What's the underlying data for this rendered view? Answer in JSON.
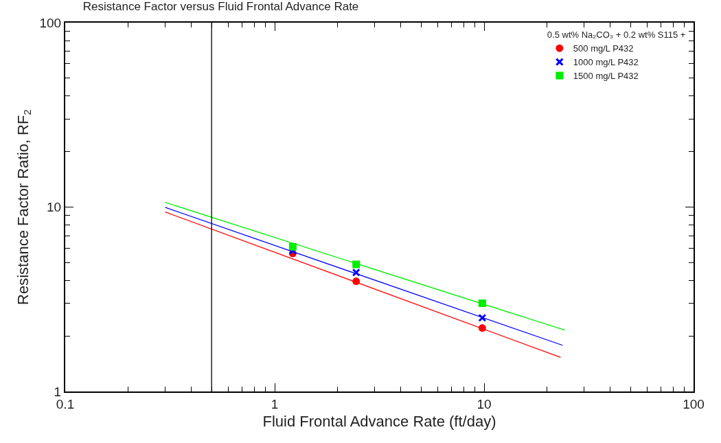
{
  "chart_data": {
    "type": "scatter",
    "title": "Resistance Factor versus Fluid Frontal Advance Rate",
    "xlabel": "Fluid Frontal Advance Rate (ft/day)",
    "ylabel": "Resistance Factor Ratio, RF$_{2}$",
    "legend_title": "0.5 wt% Na₂CO₃ + 0.2 wt% S115 +",
    "log": "xy",
    "legend": "top right",
    "xlim": [
      0.1,
      100
    ],
    "xticks": [
      {
        "value": 0.1,
        "label": "0.1"
      },
      1,
      10,
      100
    ],
    "ylim": [
      1,
      100
    ],
    "yticks": [
      1,
      10,
      100
    ],
    "ref_lines": [
      {
        "axis": "x",
        "value": 0.5,
        "color": "#000000"
      }
    ],
    "series": [
      {
        "name": "500 mg/L P432",
        "color": "#ff0000",
        "marker": "circle",
        "x": [
          1.22,
          2.45,
          9.8
        ],
        "values": [
          5.6,
          3.96,
          2.21
        ]
      },
      {
        "name": "1000 mg/L P432",
        "color": "#0000ff",
        "marker": "cross",
        "x": [
          1.22,
          2.45,
          9.8
        ],
        "values": [
          5.8,
          4.42,
          2.51
        ]
      },
      {
        "name": "1500 mg/L P432",
        "color": "#00ee00",
        "marker": "square",
        "x": [
          1.22,
          2.45,
          9.8
        ],
        "values": [
          6.09,
          4.89,
          3.01
        ]
      },
      {
        "type": "line",
        "color": "#ff0000",
        "marker": "none",
        "x": [
          0.3,
          23.2
        ],
        "values": [
          9.4,
          1.53
        ]
      },
      {
        "type": "line",
        "color": "#0000ff",
        "marker": "none",
        "x": [
          0.3,
          23.7
        ],
        "values": [
          9.96,
          1.78
        ]
      },
      {
        "type": "line",
        "color": "#00ee00",
        "marker": "none",
        "x": [
          0.3,
          24.3
        ],
        "values": [
          10.6,
          2.15
        ]
      }
    ]
  }
}
